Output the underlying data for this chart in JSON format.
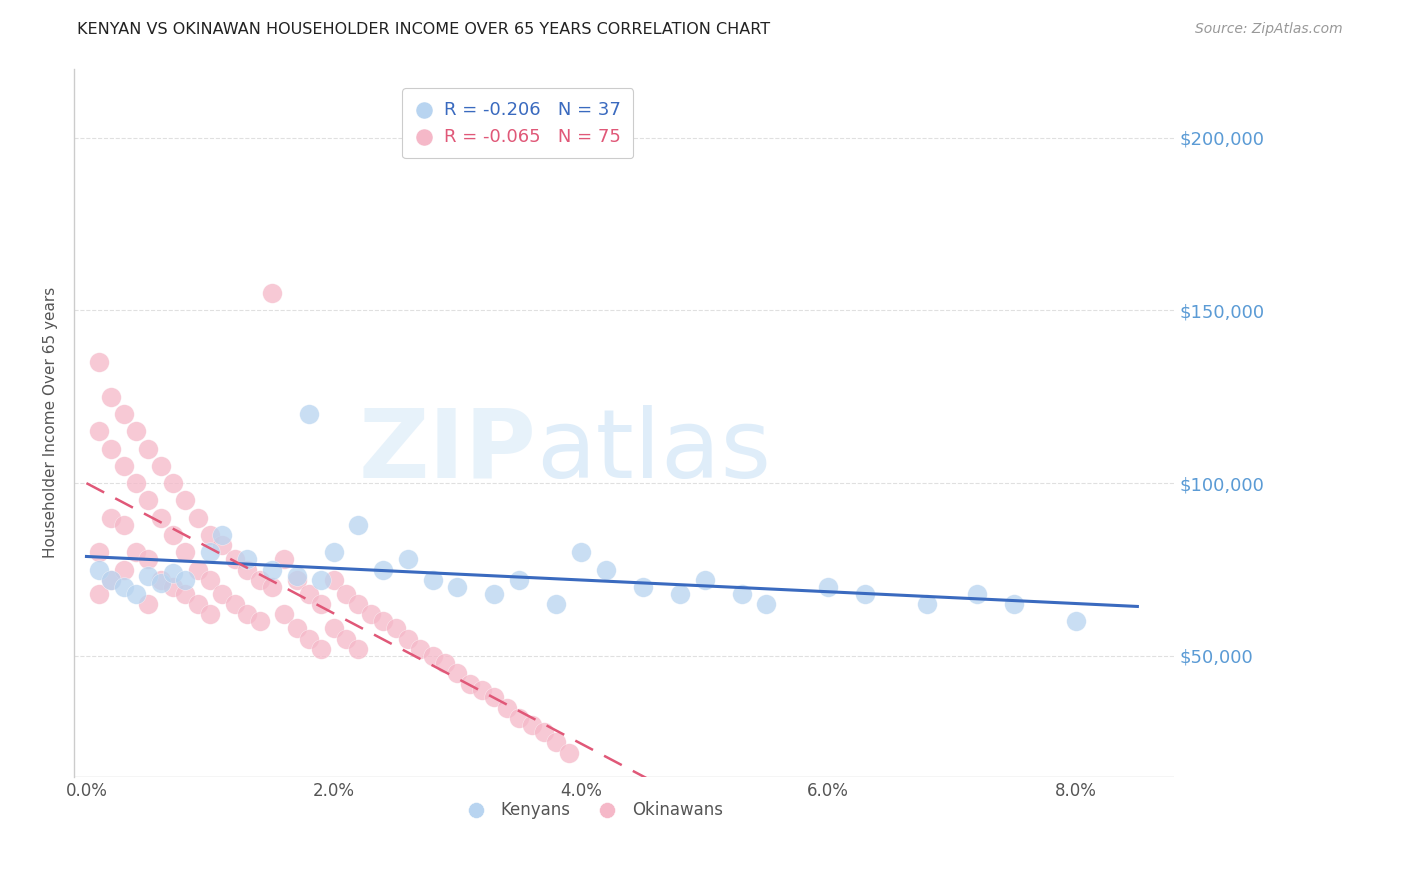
{
  "title": "KENYAN VS OKINAWAN HOUSEHOLDER INCOME OVER 65 YEARS CORRELATION CHART",
  "source": "Source: ZipAtlas.com",
  "ylabel": "Householder Income Over 65 years",
  "xlabel_ticks": [
    "0.0%",
    "2.0%",
    "4.0%",
    "6.0%",
    "8.0%"
  ],
  "xlabel_vals": [
    0.0,
    0.02,
    0.04,
    0.06,
    0.08
  ],
  "xlim": [
    -0.001,
    0.088
  ],
  "ylim": [
    15000,
    220000
  ],
  "yticks": [
    50000,
    100000,
    150000,
    200000
  ],
  "ytick_labels": [
    "$50,000",
    "$100,000",
    "$150,000",
    "$200,000"
  ],
  "background_color": "#ffffff",
  "grid_color": "#e0e0e0",
  "kenyan_color": "#b8d4f0",
  "kenyan_line_color": "#3a6abf",
  "okinawan_color": "#f5b8c8",
  "okinawan_line_color": "#e05878",
  "legend_R_kenyan": "R = -0.206",
  "legend_N_kenyan": "N = 37",
  "legend_R_okinawan": "R = -0.065",
  "legend_N_okinawan": "N = 75",
  "kenyan_x": [
    0.001,
    0.002,
    0.003,
    0.004,
    0.005,
    0.006,
    0.007,
    0.008,
    0.01,
    0.011,
    0.013,
    0.015,
    0.017,
    0.018,
    0.019,
    0.02,
    0.022,
    0.024,
    0.026,
    0.028,
    0.03,
    0.033,
    0.035,
    0.038,
    0.04,
    0.042,
    0.045,
    0.048,
    0.05,
    0.053,
    0.055,
    0.06,
    0.063,
    0.068,
    0.072,
    0.075,
    0.08
  ],
  "kenyan_y": [
    75000,
    72000,
    70000,
    68000,
    73000,
    71000,
    74000,
    72000,
    80000,
    85000,
    78000,
    75000,
    73000,
    120000,
    72000,
    80000,
    88000,
    75000,
    78000,
    72000,
    70000,
    68000,
    72000,
    65000,
    80000,
    75000,
    70000,
    68000,
    72000,
    68000,
    65000,
    70000,
    68000,
    65000,
    68000,
    65000,
    60000
  ],
  "okinawan_x": [
    0.001,
    0.001,
    0.001,
    0.001,
    0.002,
    0.002,
    0.002,
    0.002,
    0.003,
    0.003,
    0.003,
    0.003,
    0.004,
    0.004,
    0.004,
    0.005,
    0.005,
    0.005,
    0.005,
    0.006,
    0.006,
    0.006,
    0.007,
    0.007,
    0.007,
    0.008,
    0.008,
    0.008,
    0.009,
    0.009,
    0.009,
    0.01,
    0.01,
    0.01,
    0.011,
    0.011,
    0.012,
    0.012,
    0.013,
    0.013,
    0.014,
    0.014,
    0.015,
    0.015,
    0.016,
    0.016,
    0.017,
    0.017,
    0.018,
    0.018,
    0.019,
    0.019,
    0.02,
    0.02,
    0.021,
    0.021,
    0.022,
    0.022,
    0.023,
    0.024,
    0.025,
    0.026,
    0.027,
    0.028,
    0.029,
    0.03,
    0.031,
    0.032,
    0.033,
    0.034,
    0.035,
    0.036,
    0.037,
    0.038,
    0.039
  ],
  "okinawan_y": [
    135000,
    115000,
    80000,
    68000,
    125000,
    110000,
    90000,
    72000,
    120000,
    105000,
    88000,
    75000,
    115000,
    100000,
    80000,
    110000,
    95000,
    78000,
    65000,
    105000,
    90000,
    72000,
    100000,
    85000,
    70000,
    95000,
    80000,
    68000,
    90000,
    75000,
    65000,
    85000,
    72000,
    62000,
    82000,
    68000,
    78000,
    65000,
    75000,
    62000,
    72000,
    60000,
    155000,
    70000,
    78000,
    62000,
    72000,
    58000,
    68000,
    55000,
    65000,
    52000,
    72000,
    58000,
    68000,
    55000,
    65000,
    52000,
    62000,
    60000,
    58000,
    55000,
    52000,
    50000,
    48000,
    45000,
    42000,
    40000,
    38000,
    35000,
    32000,
    30000,
    28000,
    25000,
    22000
  ]
}
